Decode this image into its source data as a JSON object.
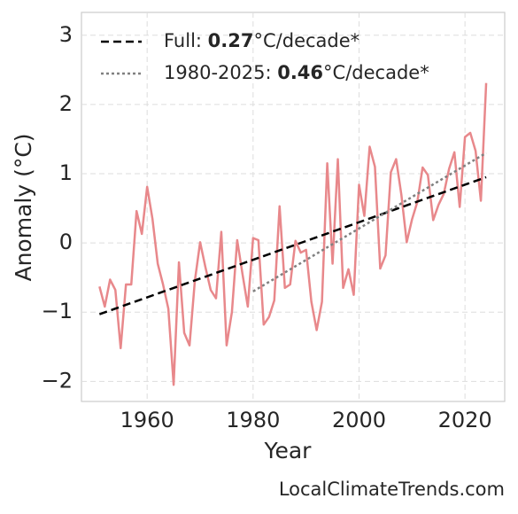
{
  "chart_data": {
    "type": "line",
    "xlabel": "Year",
    "ylabel": "Anomaly (°C)",
    "footer": "LocalClimateTrends.com",
    "x": [
      1951,
      1952,
      1953,
      1954,
      1955,
      1956,
      1957,
      1958,
      1959,
      1960,
      1961,
      1962,
      1963,
      1964,
      1965,
      1966,
      1967,
      1968,
      1969,
      1970,
      1971,
      1972,
      1973,
      1974,
      1975,
      1976,
      1977,
      1978,
      1979,
      1980,
      1981,
      1982,
      1983,
      1984,
      1985,
      1986,
      1987,
      1988,
      1989,
      1990,
      1991,
      1992,
      1993,
      1994,
      1995,
      1996,
      1997,
      1998,
      1999,
      2000,
      2001,
      2002,
      2003,
      2004,
      2005,
      2006,
      2007,
      2008,
      2009,
      2010,
      2011,
      2012,
      2013,
      2014,
      2015,
      2016,
      2017,
      2018,
      2019,
      2020,
      2021,
      2022,
      2023,
      2024
    ],
    "series": [
      {
        "color": "#e8888b",
        "values": [
          -0.63,
          -0.92,
          -0.53,
          -0.68,
          -1.52,
          -0.6,
          -0.6,
          0.46,
          0.13,
          0.81,
          0.35,
          -0.3,
          -0.6,
          -0.95,
          -2.05,
          -0.28,
          -1.3,
          -1.48,
          -0.55,
          0.01,
          -0.35,
          -0.68,
          -0.8,
          0.16,
          -1.48,
          -1.0,
          0.04,
          -0.45,
          -0.92,
          0.07,
          0.04,
          -1.18,
          -1.07,
          -0.83,
          0.53,
          -0.65,
          -0.6,
          0.03,
          -0.14,
          -0.1,
          -0.85,
          -1.26,
          -0.85,
          1.15,
          -0.3,
          1.21,
          -0.65,
          -0.38,
          -0.75,
          0.84,
          0.39,
          1.39,
          1.1,
          -0.37,
          -0.18,
          1.02,
          1.21,
          0.69,
          0.01,
          0.34,
          0.59,
          1.09,
          0.98,
          0.33,
          0.55,
          0.71,
          1.07,
          1.31,
          0.52,
          1.53,
          1.59,
          1.33,
          0.61,
          2.31
        ]
      }
    ],
    "trend_lines": [
      {
        "label": "Full: ",
        "rate": 0.27,
        "unit": "°C/decade*",
        "color": "#000000",
        "style": "dashed",
        "x": [
          1951,
          2024
        ],
        "values": [
          -1.03,
          0.95
        ]
      },
      {
        "label": "1980-2025: ",
        "rate": 0.46,
        "unit": "°C/decade*",
        "color": "#808080",
        "style": "dotted",
        "x": [
          1980,
          2024
        ],
        "values": [
          -0.7,
          1.3
        ]
      }
    ],
    "xlim": [
      1947.6,
      2027.5
    ],
    "ylim": [
      -2.29,
      3.33
    ],
    "xticks": [
      1960,
      1980,
      2000,
      2020
    ],
    "yticks": [
      {
        "value": -2,
        "label": "−2"
      },
      {
        "value": -1,
        "label": "−1"
      },
      0,
      1,
      2,
      3
    ],
    "grid": true,
    "legend": "upper left"
  }
}
